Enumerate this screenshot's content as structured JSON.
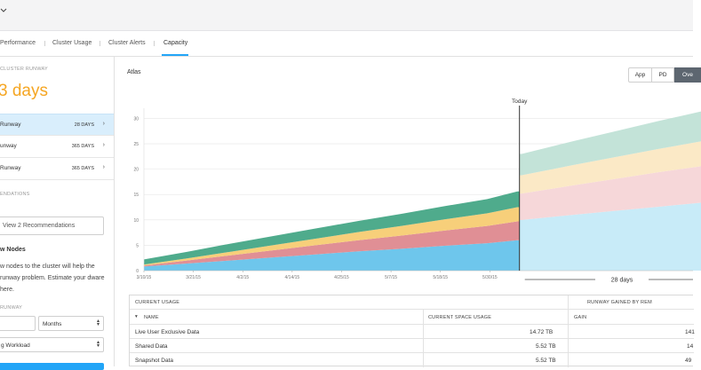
{
  "tabs": [
    {
      "label": "Performance",
      "active": false
    },
    {
      "label": "Cluster Usage",
      "active": false
    },
    {
      "label": "Cluster Alerts",
      "active": false
    },
    {
      "label": "Capacity",
      "active": true
    }
  ],
  "sidebar": {
    "cluster_runway_label": "CLUSTER RUNWAY",
    "days_value": "3",
    "days_unit": "days",
    "runway_items": [
      {
        "label": "Runway",
        "value": "28 DAYS",
        "selected": true
      },
      {
        "label": "unway",
        "value": "365 DAYS",
        "selected": false
      },
      {
        "label": "Runway",
        "value": "365 DAYS",
        "selected": false
      }
    ],
    "recommendations_label": "ENDATIONS",
    "view_recommendations_button": "View 2 Recommendations",
    "nodes_title": "w Nodes",
    "nodes_text": "w nodes to the cluster will help the runway problem. Estimate your dware here.",
    "runway_label2": "RUNWAY",
    "period_select": "Months",
    "workload_select": "g Workload"
  },
  "main": {
    "chart_title": "Atlas",
    "view_toggle": [
      {
        "label": "App",
        "active": false
      },
      {
        "label": "PD",
        "active": false
      },
      {
        "label": "Ove",
        "active": true
      }
    ]
  },
  "chart_data": {
    "type": "area",
    "stacked": true,
    "today_label": "Today",
    "runway_label": "28 days",
    "x_ticks": [
      "3/10/15",
      "3/21/15",
      "4/2/15",
      "4/14/15",
      "4/25/15",
      "5/7/15",
      "5/18/15",
      "5/30/15"
    ],
    "y_ticks": [
      0,
      5,
      10,
      15,
      20,
      25,
      30
    ],
    "ylim": [
      0,
      32
    ],
    "grid": true,
    "today_x": "6/5/15",
    "series": [
      {
        "color": "#6ec6ec",
        "forecast_color": "#c8ebf8",
        "points": [
          [
            0,
            0.8
          ],
          [
            10,
            1.4
          ],
          [
            20,
            2.0
          ],
          [
            30,
            2.6
          ],
          [
            40,
            3.2
          ],
          [
            50,
            3.8
          ],
          [
            60,
            4.3
          ],
          [
            70,
            4.9
          ],
          [
            80,
            5.4
          ],
          [
            87,
            6.0
          ],
          [
            88,
            10.0
          ],
          [
            100,
            11.0
          ],
          [
            110,
            11.8
          ],
          [
            120,
            12.6
          ],
          [
            130,
            13.4
          ]
        ]
      },
      {
        "color": "#e08f95",
        "forecast_color": "#f6d7d9",
        "points": [
          [
            0,
            0.2
          ],
          [
            10,
            0.6
          ],
          [
            20,
            1.0
          ],
          [
            30,
            1.4
          ],
          [
            40,
            1.8
          ],
          [
            50,
            2.2
          ],
          [
            60,
            2.6
          ],
          [
            70,
            3.0
          ],
          [
            80,
            3.4
          ],
          [
            87,
            3.7
          ],
          [
            88,
            5.2
          ],
          [
            100,
            5.8
          ],
          [
            110,
            6.3
          ],
          [
            120,
            6.8
          ],
          [
            130,
            7.2
          ]
        ]
      },
      {
        "color": "#f7cf7a",
        "forecast_color": "#fbe9c6",
        "points": [
          [
            0,
            0.2
          ],
          [
            10,
            0.4
          ],
          [
            20,
            0.7
          ],
          [
            30,
            1.0
          ],
          [
            40,
            1.3
          ],
          [
            50,
            1.6
          ],
          [
            60,
            1.9
          ],
          [
            70,
            2.2
          ],
          [
            80,
            2.5
          ],
          [
            87,
            2.8
          ],
          [
            88,
            3.6
          ],
          [
            100,
            4.0
          ],
          [
            110,
            4.3
          ],
          [
            120,
            4.6
          ],
          [
            130,
            4.9
          ]
        ]
      },
      {
        "color": "#4fab8c",
        "forecast_color": "#c3e3d8",
        "points": [
          [
            0,
            1.0
          ],
          [
            10,
            1.3
          ],
          [
            20,
            1.6
          ],
          [
            30,
            1.8
          ],
          [
            40,
            2.0
          ],
          [
            50,
            2.2
          ],
          [
            60,
            2.4
          ],
          [
            70,
            2.6
          ],
          [
            80,
            2.8
          ],
          [
            87,
            3.1
          ],
          [
            88,
            4.2
          ],
          [
            100,
            4.7
          ],
          [
            110,
            5.1
          ],
          [
            120,
            5.5
          ],
          [
            130,
            5.9
          ]
        ]
      }
    ]
  },
  "table": {
    "current_usage_header": "CURRENT USAGE",
    "runway_gained_header": "RUNWAY GAINED BY REM",
    "col_name": "NAME",
    "col_space": "CURRENT SPACE USAGE",
    "col_gain": "GAIN",
    "rows": [
      {
        "name": "Live User Exclusive Data",
        "space": "14.72 TB",
        "gain": "141"
      },
      {
        "name": "Shared Data",
        "space": "5.52 TB",
        "gain": "14"
      },
      {
        "name": "Snapshot Data",
        "space": "5.52 TB",
        "gain": "49"
      }
    ]
  }
}
